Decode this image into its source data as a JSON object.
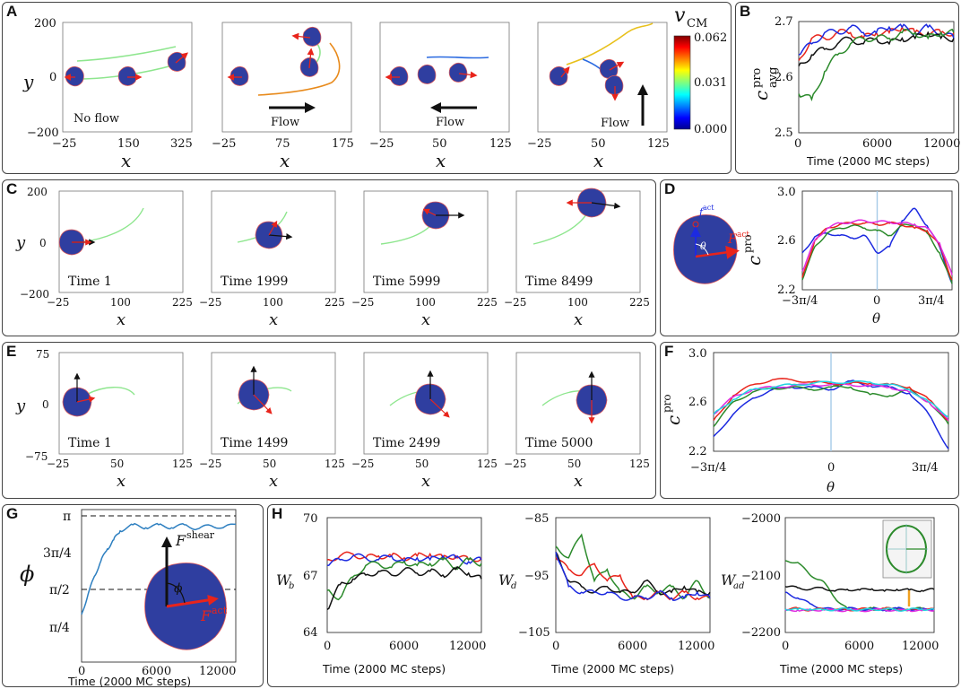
{
  "panels": {
    "A": {
      "label": "A",
      "ylabel": "y",
      "xlabel": "x",
      "yticks": [
        "200",
        "0",
        "−200"
      ],
      "subplots": [
        {
          "xticks": [
            "−25",
            "150",
            "325"
          ],
          "caption": "No flow",
          "flow": ""
        },
        {
          "xticks": [
            "−25",
            "75",
            "175"
          ],
          "caption": "",
          "flow": "Flow"
        },
        {
          "xticks": [
            "−25",
            "50",
            "125"
          ],
          "caption": "",
          "flow": "Flow"
        },
        {
          "xticks": [
            "−25",
            "50",
            "125"
          ],
          "caption": "",
          "flow": "Flow"
        }
      ],
      "colorbar": {
        "title": "v",
        "title_sub": "CM",
        "ticks": [
          "0.062",
          "0.031",
          "0.000"
        ],
        "range": [
          0.0,
          0.062
        ]
      }
    },
    "B": {
      "label": "B",
      "ylabel": "c",
      "ylabel_sup": "pro",
      "ylabel_sub": "avg",
      "xlabel": "Time (2000 MC steps)",
      "yticks": [
        "2.7",
        "2.6",
        "2.5"
      ],
      "xticks": [
        "0",
        "6000",
        "12000"
      ],
      "ylim": [
        2.5,
        2.7
      ],
      "xlim": [
        0,
        12000
      ]
    },
    "C": {
      "label": "C",
      "ylabel": "y",
      "xlabel": "x",
      "yticks": [
        "200",
        "0",
        "−200"
      ],
      "xticks": [
        "−25",
        "100",
        "225"
      ],
      "times": [
        "Time 1",
        "Time 1999",
        "Time 5999",
        "Time 8499"
      ]
    },
    "D": {
      "label": "D",
      "f_act_small": "f",
      "f_act_small_sup": "act",
      "F_act": "F",
      "F_act_sup": "act",
      "theta": "θ",
      "ylabel": "c",
      "ylabel_sup": "pro",
      "xlabel": "θ",
      "yticks": [
        "3.0",
        "2.6",
        "2.2"
      ],
      "xticks": [
        "−3π/4",
        "0",
        "3π/4"
      ],
      "ylim": [
        2.2,
        3.0
      ]
    },
    "E": {
      "label": "E",
      "ylabel": "y",
      "xlabel": "x",
      "yticks": [
        "75",
        "0",
        "−75"
      ],
      "xticks": [
        "−25",
        "50",
        "125"
      ],
      "times": [
        "Time 1",
        "Time 1499",
        "Time 2499",
        "Time 5000"
      ]
    },
    "F": {
      "label": "F",
      "ylabel": "c",
      "ylabel_sup": "pro",
      "xlabel": "θ",
      "yticks": [
        "3.0",
        "2.6",
        "2.2"
      ],
      "xticks": [
        "−3π/4",
        "0",
        "3π/4"
      ],
      "ylim": [
        2.2,
        3.0
      ]
    },
    "G": {
      "label": "G",
      "ylabel": "ϕ",
      "yticks": [
        "π",
        "3π/4",
        "π/2",
        "π/4"
      ],
      "xticks": [
        "0",
        "6000",
        "12000"
      ],
      "xlabel": "Time (2000 MC steps)",
      "F_shear": "F",
      "F_shear_sup": "shear",
      "F_act": "F",
      "F_act_sup": "act",
      "phi": "ϕ"
    },
    "H": {
      "label": "H",
      "subplots": [
        {
          "ylabel": "W",
          "ylabel_sub": "b",
          "yticks": [
            "70",
            "67",
            "64"
          ],
          "xticks": [
            "0",
            "6000",
            "12000"
          ],
          "xlabel": "Time (2000 MC steps)",
          "ylim": [
            64,
            70
          ]
        },
        {
          "ylabel": "W",
          "ylabel_sub": "d",
          "yticks": [
            "−85",
            "−95",
            "−105"
          ],
          "xticks": [
            "0",
            "6000",
            "12000"
          ],
          "xlabel": "Time (2000 MC steps)",
          "ylim": [
            -105,
            -85
          ]
        },
        {
          "ylabel": "W",
          "ylabel_sub": "ad",
          "yticks": [
            "−2000",
            "−2100",
            "−2200"
          ],
          "xticks": [
            "0",
            "6000",
            "12000"
          ],
          "xlabel": "Time (2000 MC steps)",
          "ylim": [
            -2200,
            -2000
          ]
        }
      ]
    }
  },
  "chart_data": [
    {
      "type": "line",
      "panel": "B",
      "title": "",
      "xlabel": "Time (2000 MC steps)",
      "ylabel": "c_avg^pro",
      "xlim": [
        0,
        12000
      ],
      "ylim": [
        2.5,
        2.7
      ],
      "x": [
        0,
        1000,
        2000,
        3000,
        4000,
        5000,
        6000,
        7000,
        8000,
        9000,
        10000,
        11000,
        12000
      ],
      "series": [
        {
          "name": "red",
          "color": "#e8241b",
          "values": [
            2.63,
            2.67,
            2.67,
            2.68,
            2.68,
            2.67,
            2.68,
            2.68,
            2.69,
            2.68,
            2.68,
            2.68,
            2.68
          ]
        },
        {
          "name": "blue",
          "color": "#1c2ae0",
          "values": [
            2.64,
            2.66,
            2.68,
            2.68,
            2.69,
            2.68,
            2.68,
            2.69,
            2.69,
            2.68,
            2.69,
            2.68,
            2.67
          ]
        },
        {
          "name": "black",
          "color": "#111111",
          "values": [
            2.62,
            2.64,
            2.65,
            2.66,
            2.67,
            2.66,
            2.67,
            2.66,
            2.67,
            2.67,
            2.68,
            2.67,
            2.67
          ]
        },
        {
          "name": "green",
          "color": "#2b8a2b",
          "values": [
            2.57,
            2.56,
            2.61,
            2.64,
            2.66,
            2.67,
            2.67,
            2.67,
            2.68,
            2.68,
            2.67,
            2.68,
            2.68
          ]
        }
      ]
    },
    {
      "type": "line",
      "panel": "D",
      "xlabel": "θ",
      "ylabel": "c^pro",
      "xlim": [
        -2.356,
        2.356
      ],
      "ylim": [
        2.2,
        3.0
      ],
      "x": [
        -2.356,
        -1.963,
        -1.571,
        -1.178,
        -0.785,
        -0.393,
        0.0,
        0.393,
        0.785,
        1.178,
        1.571,
        1.963,
        2.356
      ],
      "series": [
        {
          "name": "blue",
          "color": "#1c2ae0",
          "values": [
            2.5,
            2.63,
            2.66,
            2.64,
            2.62,
            2.64,
            2.5,
            2.55,
            2.76,
            2.86,
            2.72,
            2.55,
            2.25
          ]
        },
        {
          "name": "green",
          "color": "#2b8a2b",
          "values": [
            2.28,
            2.55,
            2.66,
            2.7,
            2.72,
            2.7,
            2.68,
            2.64,
            2.72,
            2.73,
            2.66,
            2.5,
            2.25
          ]
        },
        {
          "name": "red",
          "color": "#e8241b",
          "values": [
            2.3,
            2.6,
            2.7,
            2.73,
            2.74,
            2.74,
            2.73,
            2.74,
            2.73,
            2.7,
            2.68,
            2.56,
            2.28
          ]
        },
        {
          "name": "magenta",
          "color": "#e02be0",
          "values": [
            2.35,
            2.6,
            2.7,
            2.74,
            2.75,
            2.76,
            2.75,
            2.75,
            2.74,
            2.73,
            2.7,
            2.58,
            2.32
          ]
        }
      ]
    },
    {
      "type": "line",
      "panel": "F",
      "xlabel": "θ",
      "ylabel": "c^pro",
      "xlim": [
        -2.356,
        2.356
      ],
      "ylim": [
        2.2,
        3.0
      ],
      "x": [
        -2.356,
        -1.963,
        -1.571,
        -1.178,
        -0.785,
        -0.393,
        0.0,
        0.393,
        0.785,
        1.178,
        1.571,
        1.963,
        2.356
      ],
      "series": [
        {
          "name": "blue",
          "color": "#1c2ae0",
          "values": [
            2.32,
            2.5,
            2.63,
            2.7,
            2.72,
            2.72,
            2.7,
            2.77,
            2.73,
            2.72,
            2.67,
            2.5,
            2.22
          ]
        },
        {
          "name": "green",
          "color": "#2b8a2b",
          "values": [
            2.4,
            2.6,
            2.68,
            2.71,
            2.72,
            2.7,
            2.72,
            2.72,
            2.66,
            2.65,
            2.7,
            2.6,
            2.42
          ]
        },
        {
          "name": "red",
          "color": "#e8241b",
          "values": [
            2.45,
            2.65,
            2.74,
            2.78,
            2.78,
            2.76,
            2.75,
            2.75,
            2.75,
            2.74,
            2.72,
            2.62,
            2.45
          ]
        },
        {
          "name": "magenta",
          "color": "#e02be0",
          "values": [
            2.5,
            2.64,
            2.7,
            2.72,
            2.73,
            2.74,
            2.74,
            2.74,
            2.73,
            2.72,
            2.68,
            2.6,
            2.45
          ]
        },
        {
          "name": "cyan",
          "color": "#22d3e0",
          "values": [
            2.5,
            2.62,
            2.7,
            2.72,
            2.74,
            2.75,
            2.76,
            2.76,
            2.76,
            2.74,
            2.7,
            2.6,
            2.48
          ]
        }
      ]
    },
    {
      "type": "line",
      "panel": "G",
      "xlabel": "Time (2000 MC steps)",
      "ylabel": "ϕ",
      "xlim": [
        0,
        12000
      ],
      "ylim": [
        0.785,
        3.3
      ],
      "x": [
        0,
        500,
        1000,
        1500,
        2000,
        2500,
        3000,
        4000,
        5000,
        6000,
        7000,
        8000,
        9000,
        10000,
        11000,
        12000
      ],
      "series": [
        {
          "name": "phi",
          "color": "#2d7fc0",
          "values": [
            1.571,
            1.9,
            2.2,
            2.45,
            2.65,
            2.8,
            2.95,
            3.05,
            3.0,
            3.05,
            3.0,
            3.05,
            2.98,
            3.04,
            3.0,
            3.06
          ]
        }
      ]
    },
    {
      "type": "line",
      "panel": "H",
      "xlabel": "Time (2000 MC steps)",
      "ylabel": "W_b",
      "xlim": [
        0,
        12000
      ],
      "ylim": [
        64,
        70
      ],
      "x": [
        0,
        1000,
        2000,
        3000,
        4000,
        5000,
        6000,
        7000,
        8000,
        9000,
        10000,
        11000,
        12000
      ],
      "series": [
        {
          "name": "red",
          "color": "#e8241b",
          "values": [
            67.8,
            68.0,
            68.1,
            67.9,
            68.0,
            68.0,
            67.9,
            68.0,
            68.1,
            67.9,
            68.0,
            67.8,
            67.9
          ]
        },
        {
          "name": "blue",
          "color": "#1c2ae0",
          "values": [
            67.5,
            67.8,
            68.0,
            67.9,
            67.8,
            68.0,
            67.7,
            67.9,
            67.8,
            68.0,
            67.9,
            67.7,
            67.8
          ]
        },
        {
          "name": "green",
          "color": "#2b8a2b",
          "values": [
            66.2,
            65.8,
            66.9,
            67.5,
            67.6,
            67.4,
            67.7,
            67.5,
            67.6,
            67.8,
            67.4,
            67.8,
            67.6
          ]
        },
        {
          "name": "black",
          "color": "#111111",
          "values": [
            65.2,
            66.5,
            66.8,
            67.0,
            67.2,
            67.0,
            67.3,
            67.1,
            67.2,
            67.0,
            67.3,
            67.1,
            66.8
          ]
        }
      ]
    },
    {
      "type": "line",
      "panel": "H",
      "xlabel": "Time (2000 MC steps)",
      "ylabel": "W_d",
      "xlim": [
        0,
        12000
      ],
      "ylim": [
        -105,
        -85
      ],
      "x": [
        0,
        1000,
        2000,
        3000,
        4000,
        5000,
        6000,
        7000,
        8000,
        9000,
        10000,
        11000,
        12000
      ],
      "series": [
        {
          "name": "green",
          "color": "#2b8a2b",
          "values": [
            -90,
            -92,
            -88,
            -96,
            -94,
            -98,
            -99,
            -97,
            -98,
            -97,
            -99,
            -96,
            -99
          ]
        },
        {
          "name": "red",
          "color": "#e8241b",
          "values": [
            -92,
            -94,
            -95,
            -93,
            -96,
            -95,
            -99,
            -99,
            -98,
            -99,
            -98,
            -99,
            -99
          ]
        },
        {
          "name": "black",
          "color": "#111111",
          "values": [
            -91,
            -96,
            -97,
            -98,
            -97,
            -98,
            -98,
            -96,
            -98,
            -98,
            -97,
            -98,
            -98
          ]
        },
        {
          "name": "blue",
          "color": "#1c2ae0",
          "values": [
            -91,
            -97,
            -98,
            -98,
            -98,
            -99,
            -99,
            -99,
            -98,
            -99,
            -99,
            -98,
            -99
          ]
        }
      ]
    },
    {
      "type": "line",
      "panel": "H",
      "xlabel": "Time (2000 MC steps)",
      "ylabel": "W_ad",
      "xlim": [
        0,
        12000
      ],
      "ylim": [
        -2200,
        -2000
      ],
      "x": [
        0,
        1000,
        2000,
        3000,
        4000,
        5000,
        6000,
        7000,
        8000,
        9000,
        10000,
        11000,
        12000
      ],
      "series": [
        {
          "name": "green",
          "color": "#2b8a2b",
          "values": [
            -2075,
            -2078,
            -2100,
            -2110,
            -2140,
            -2158,
            -2160,
            -2158,
            -2160,
            -2159,
            -2160,
            -2158,
            -2160
          ]
        },
        {
          "name": "black",
          "color": "#111111",
          "values": [
            -2120,
            -2122,
            -2125,
            -2122,
            -2128,
            -2125,
            -2126,
            -2124,
            -2128,
            -2125,
            -2126,
            -2127,
            -2125
          ]
        },
        {
          "name": "blue",
          "color": "#1c2ae0",
          "values": [
            -2130,
            -2140,
            -2150,
            -2158,
            -2160,
            -2158,
            -2160,
            -2159,
            -2161,
            -2158,
            -2160,
            -2160,
            -2158
          ]
        },
        {
          "name": "red",
          "color": "#e8241b",
          "values": [
            -2160,
            -2158,
            -2161,
            -2159,
            -2160,
            -2161,
            -2159,
            -2160,
            -2158,
            -2160,
            -2161,
            -2159,
            -2160
          ]
        },
        {
          "name": "magenta",
          "color": "#e02be0",
          "values": [
            -2162,
            -2161,
            -2162,
            -2160,
            -2162,
            -2161,
            -2162,
            -2161,
            -2160,
            -2162,
            -2161,
            -2162,
            -2161
          ]
        },
        {
          "name": "cyan",
          "color": "#22d3e0",
          "values": [
            -2159,
            -2160,
            -2159,
            -2161,
            -2160,
            -2159,
            -2161,
            -2160,
            -2159,
            -2161,
            -2160,
            -2159,
            -2160
          ]
        }
      ]
    }
  ]
}
